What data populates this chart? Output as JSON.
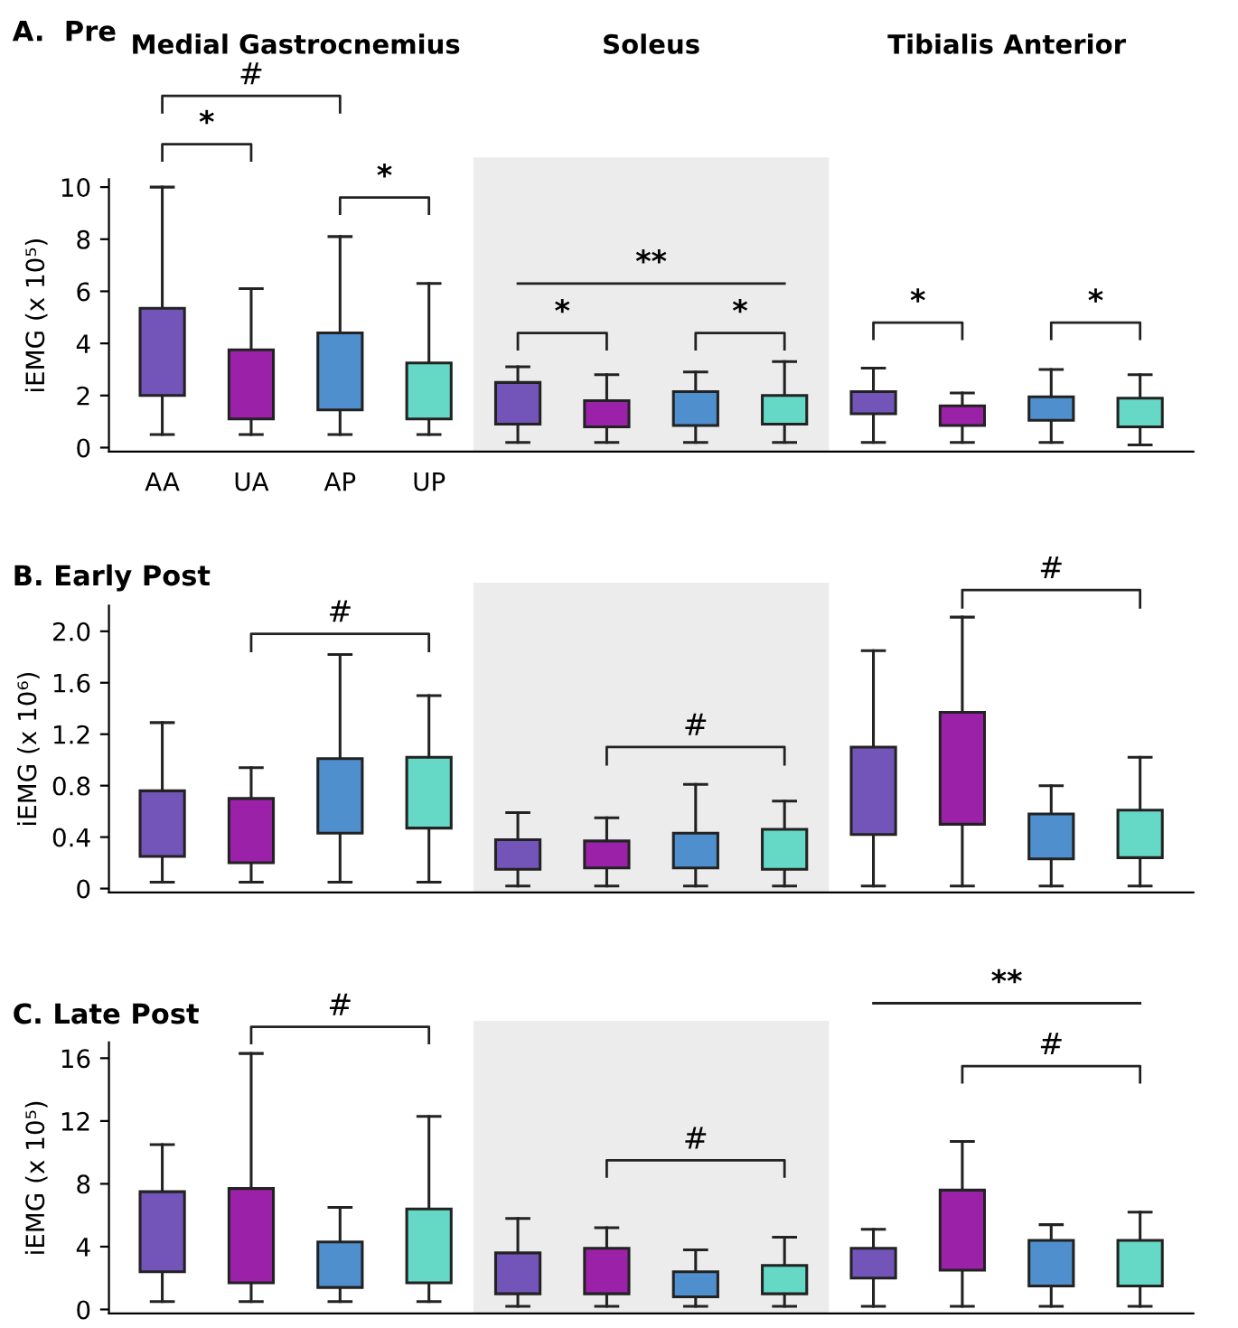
{
  "chart_data": [
    {
      "type": "box",
      "title": "A.  Pre",
      "ylabel": "iEMG (x 10⁵)",
      "categories": [
        "AA",
        "UA",
        "AP",
        "UP",
        null,
        null,
        null,
        null,
        null,
        null,
        null,
        null
      ],
      "colors": [
        "#7354b8",
        "#9b22a8",
        "#4f8fcd",
        "#66d8c6",
        "#7354b8",
        "#9b22a8",
        "#4f8fcd",
        "#66d8c6",
        "#7354b8",
        "#9b22a8",
        "#4f8fcd",
        "#66d8c6"
      ],
      "boxes": [
        {
          "low": 0.5,
          "q1": 2.0,
          "median": 3.2,
          "q3": 5.35,
          "high": 10.0
        },
        {
          "low": 0.5,
          "q1": 1.1,
          "median": 2.2,
          "q3": 3.75,
          "high": 6.1
        },
        {
          "low": 0.5,
          "q1": 1.45,
          "median": 2.8,
          "q3": 4.4,
          "high": 8.1
        },
        {
          "low": 0.5,
          "q1": 1.1,
          "median": 1.7,
          "q3": 3.25,
          "high": 6.3
        },
        {
          "low": 0.2,
          "q1": 0.9,
          "median": 1.9,
          "q3": 2.5,
          "high": 3.1
        },
        {
          "low": 0.2,
          "q1": 0.8,
          "median": 1.5,
          "q3": 1.8,
          "high": 2.8
        },
        {
          "low": 0.2,
          "q1": 0.85,
          "median": 1.7,
          "q3": 2.15,
          "high": 2.9
        },
        {
          "low": 0.2,
          "q1": 0.9,
          "median": 1.5,
          "q3": 2.0,
          "high": 3.3
        },
        {
          "low": 0.2,
          "q1": 1.3,
          "median": 1.5,
          "q3": 2.15,
          "high": 3.05
        },
        {
          "low": 0.2,
          "q1": 0.85,
          "median": 1.35,
          "q3": 1.6,
          "high": 2.1
        },
        {
          "low": 0.2,
          "q1": 1.05,
          "median": 1.4,
          "q3": 1.95,
          "high": 3.0
        },
        {
          "low": 0.1,
          "q1": 0.8,
          "median": 1.45,
          "q3": 1.9,
          "high": 2.8
        }
      ],
      "ylim": [
        -0.15,
        10.3
      ],
      "yticks": [
        0,
        2,
        4,
        6,
        8,
        10
      ],
      "annotations": [
        "Medial Gastrocnemius",
        "Soleus",
        "Tibialis Anterior",
        "*",
        "#",
        "*",
        "**",
        "*",
        "*",
        "*",
        "*"
      ]
    },
    {
      "type": "box",
      "title": "B. Early Post",
      "ylabel": "iEMG (x 10⁶)",
      "categories": [
        null,
        null,
        null,
        null,
        null,
        null,
        null,
        null,
        null,
        null,
        null,
        null
      ],
      "colors": [
        "#7354b8",
        "#9b22a8",
        "#4f8fcd",
        "#66d8c6",
        "#7354b8",
        "#9b22a8",
        "#4f8fcd",
        "#66d8c6",
        "#7354b8",
        "#9b22a8",
        "#4f8fcd",
        "#66d8c6"
      ],
      "boxes": [
        {
          "low": 0.05,
          "q1": 0.25,
          "median": 0.5,
          "q3": 0.76,
          "high": 1.29
        },
        {
          "low": 0.05,
          "q1": 0.2,
          "median": 0.45,
          "q3": 0.7,
          "high": 0.94
        },
        {
          "low": 0.05,
          "q1": 0.43,
          "median": 0.79,
          "q3": 1.01,
          "high": 1.82
        },
        {
          "low": 0.05,
          "q1": 0.47,
          "median": 0.77,
          "q3": 1.02,
          "high": 1.5
        },
        {
          "low": 0.02,
          "q1": 0.15,
          "median": 0.32,
          "q3": 0.38,
          "high": 0.59
        },
        {
          "low": 0.02,
          "q1": 0.16,
          "median": 0.3,
          "q3": 0.37,
          "high": 0.55
        },
        {
          "low": 0.02,
          "q1": 0.16,
          "median": 0.39,
          "q3": 0.43,
          "high": 0.81
        },
        {
          "low": 0.02,
          "q1": 0.15,
          "median": 0.31,
          "q3": 0.46,
          "high": 0.68
        },
        {
          "low": 0.02,
          "q1": 0.42,
          "median": 0.82,
          "q3": 1.1,
          "high": 1.85
        },
        {
          "low": 0.02,
          "q1": 0.5,
          "median": 0.82,
          "q3": 1.37,
          "high": 2.11
        },
        {
          "low": 0.02,
          "q1": 0.23,
          "median": 0.39,
          "q3": 0.58,
          "high": 0.8
        },
        {
          "low": 0.02,
          "q1": 0.24,
          "median": 0.4,
          "q3": 0.61,
          "high": 1.02
        }
      ],
      "ylim": [
        -0.03,
        2.2
      ],
      "yticks": [
        0,
        0.4,
        0.8,
        1.2,
        1.6,
        {
          "value": 2,
          "label": "2.0"
        }
      ],
      "annotations": [
        "#",
        "#",
        "#"
      ]
    },
    {
      "type": "box",
      "title": "C. Late Post",
      "ylabel": "iEMG (x 10⁵)",
      "categories": [
        null,
        null,
        null,
        null,
        null,
        null,
        null,
        null,
        null,
        null,
        null,
        null
      ],
      "colors": [
        "#7354b8",
        "#9b22a8",
        "#4f8fcd",
        "#66d8c6",
        "#7354b8",
        "#9b22a8",
        "#4f8fcd",
        "#66d8c6",
        "#7354b8",
        "#9b22a8",
        "#4f8fcd",
        "#66d8c6"
      ],
      "boxes": [
        {
          "low": 0.5,
          "q1": 2.4,
          "median": 4.5,
          "q3": 7.5,
          "high": 10.5
        },
        {
          "low": 0.5,
          "q1": 1.7,
          "median": 5.7,
          "q3": 7.7,
          "high": 16.3
        },
        {
          "low": 0.5,
          "q1": 1.4,
          "median": 2.2,
          "q3": 4.3,
          "high": 6.5
        },
        {
          "low": 0.5,
          "q1": 1.7,
          "median": 3.2,
          "q3": 6.4,
          "high": 12.3
        },
        {
          "low": 0.2,
          "q1": 1.0,
          "median": 2.7,
          "q3": 3.6,
          "high": 5.8
        },
        {
          "low": 0.2,
          "q1": 1.0,
          "median": 2.4,
          "q3": 3.9,
          "high": 5.2
        },
        {
          "low": 0.2,
          "q1": 0.8,
          "median": 1.9,
          "q3": 2.4,
          "high": 3.8
        },
        {
          "low": 0.2,
          "q1": 1.0,
          "median": 2.3,
          "q3": 2.8,
          "high": 4.6
        },
        {
          "low": 0.2,
          "q1": 2.0,
          "median": 2.6,
          "q3": 3.9,
          "high": 5.1
        },
        {
          "low": 0.2,
          "q1": 2.5,
          "median": 4.8,
          "q3": 7.6,
          "high": 10.7
        },
        {
          "low": 0.2,
          "q1": 1.5,
          "median": 3.2,
          "q3": 4.4,
          "high": 5.4
        },
        {
          "low": 0.2,
          "q1": 1.5,
          "median": 2.6,
          "q3": 4.4,
          "high": 6.2
        }
      ],
      "ylim": [
        -0.25,
        17
      ],
      "yticks": [
        0,
        4,
        8,
        12,
        16
      ],
      "annotations": [
        "#",
        "#",
        "**",
        "#"
      ]
    }
  ]
}
